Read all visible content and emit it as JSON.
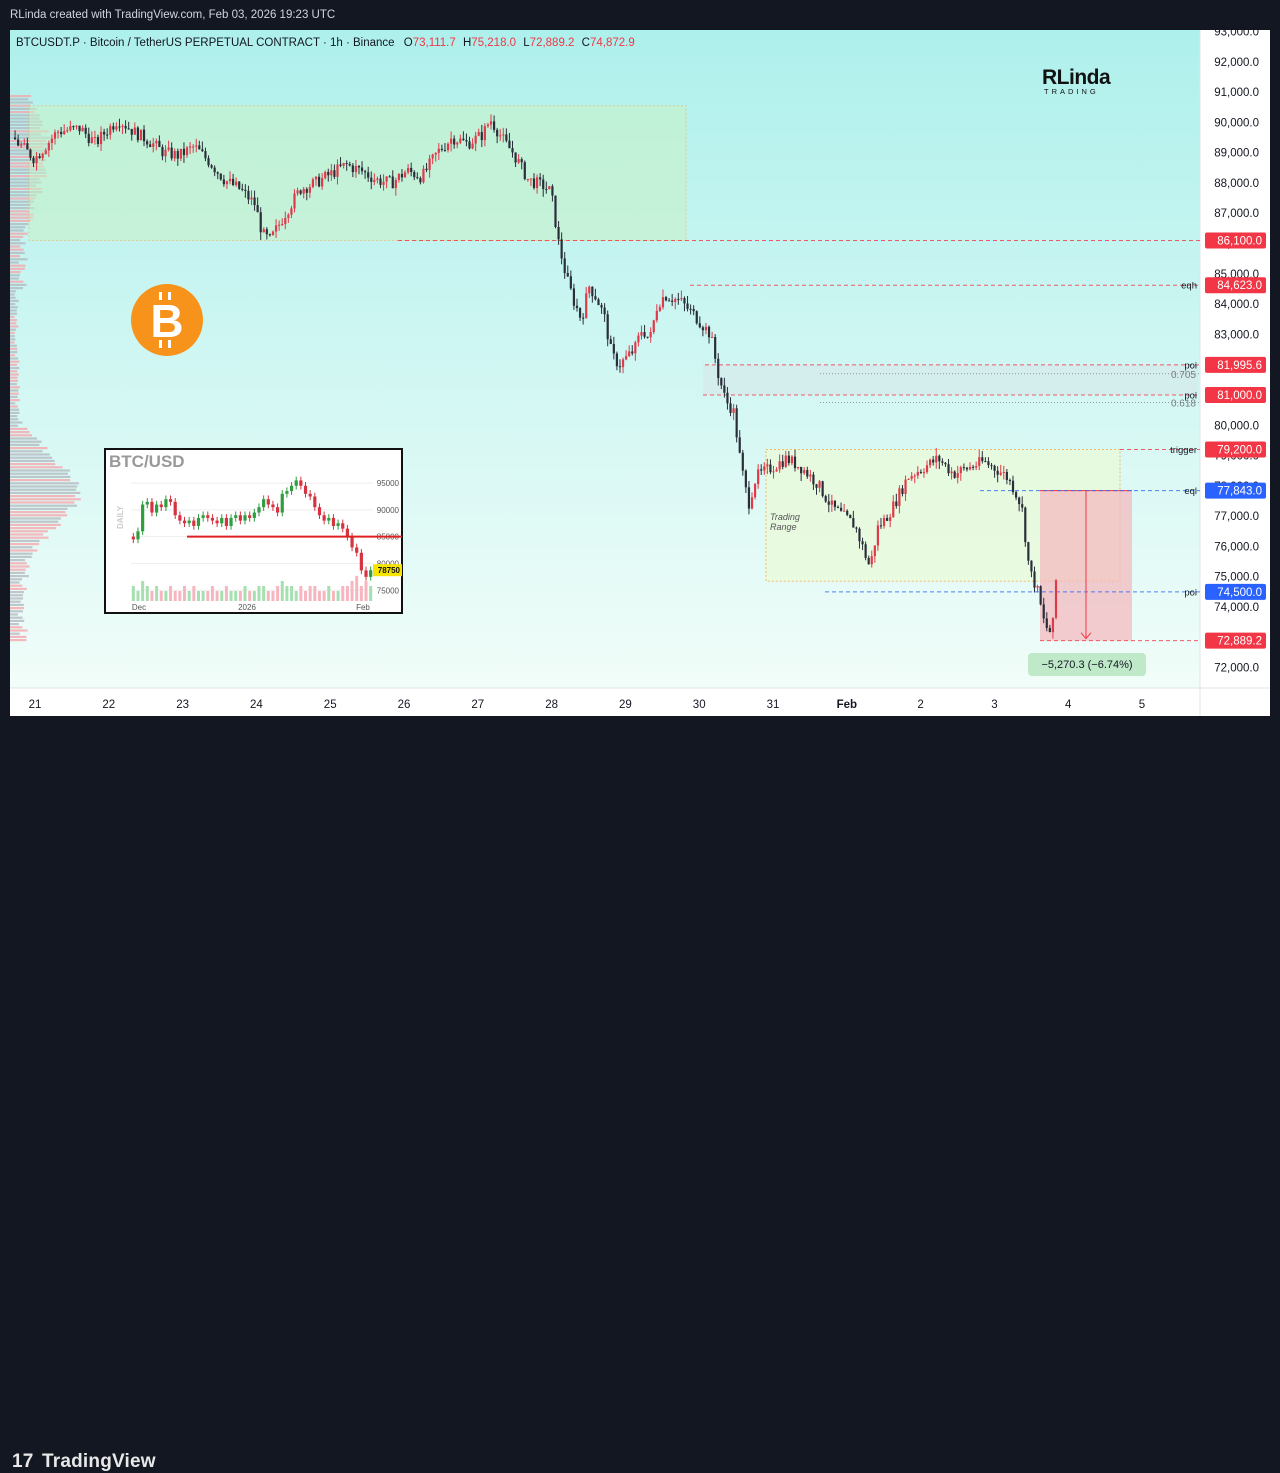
{
  "header": {
    "credit": "RLinda created with TradingView.com, Feb 03, 2026 19:23 UTC"
  },
  "footer": {
    "brand": "TradingView"
  },
  "watermark": {
    "line1": "RLinda",
    "line2": "TRADING"
  },
  "symbol": {
    "title": "BTCUSDT.P · Bitcoin / TetherUS PERPETUAL CONTRACT · 1h · Binance",
    "o_label": "O",
    "o_value": "73,111.7",
    "h_label": "H",
    "h_value": "75,218.0",
    "l_label": "L",
    "l_value": "72,889.2",
    "c_label": "C",
    "c_value": "74,872.9"
  },
  "colors": {
    "up": "#e0394a",
    "down": "#2a2e39",
    "bg_top": "#aef0ec",
    "bg_bottom": "#f1fdf9",
    "red_label": "#f23645",
    "blue_label": "#2962ff",
    "bitcoin": "#f7931a"
  },
  "chart_data": {
    "type": "candlestick",
    "timeframe": "1h",
    "x_ticks": [
      "21",
      "22",
      "23",
      "24",
      "25",
      "26",
      "27",
      "28",
      "29",
      "30",
      "31",
      "Feb",
      "2",
      "3",
      "4",
      "5"
    ],
    "y_ticks": [
      "72,000.0",
      "73,000.0",
      "74,000.0",
      "75,000.0",
      "76,000.0",
      "77,000.0",
      "78,000.0",
      "79,000.0",
      "80,000.0",
      "81,000.0",
      "82,000.0",
      "83,000.0",
      "84,000.0",
      "85,000.0",
      "86,000.0",
      "87,000.0",
      "88,000.0",
      "89,000.0",
      "90,000.0",
      "91,000.0",
      "92,000.0",
      "93,000.0"
    ],
    "ylim": [
      71300,
      93000
    ],
    "price_path": [
      [
        0,
        89500
      ],
      [
        3,
        88800
      ],
      [
        6,
        89700
      ],
      [
        9,
        89800
      ],
      [
        11,
        89300
      ],
      [
        12,
        89600
      ],
      [
        14,
        90100
      ],
      [
        16,
        89700
      ],
      [
        18,
        89400
      ],
      [
        20,
        89000
      ],
      [
        22,
        88900
      ],
      [
        24,
        89200
      ],
      [
        26,
        88700
      ],
      [
        28,
        88100
      ],
      [
        30,
        87800
      ],
      [
        32,
        87300
      ],
      [
        33,
        86300
      ],
      [
        34,
        86100
      ],
      [
        36,
        87000
      ],
      [
        38,
        87800
      ],
      [
        40,
        88000
      ],
      [
        42,
        88300
      ],
      [
        44,
        88600
      ],
      [
        46,
        88400
      ],
      [
        48,
        88100
      ],
      [
        50,
        88000
      ],
      [
        52,
        88400
      ],
      [
        54,
        88200
      ],
      [
        56,
        89000
      ],
      [
        58,
        89500
      ],
      [
        60,
        89300
      ],
      [
        62,
        89600
      ],
      [
        63,
        90100
      ],
      [
        64,
        89700
      ],
      [
        65,
        89300
      ],
      [
        66,
        89000
      ],
      [
        68,
        88100
      ],
      [
        70,
        87900
      ],
      [
        71,
        87700
      ],
      [
        72,
        86000
      ],
      [
        73,
        84900
      ],
      [
        74,
        84100
      ],
      [
        75,
        83500
      ],
      [
        76,
        84600
      ],
      [
        77,
        84200
      ],
      [
        78,
        83600
      ],
      [
        79,
        82300
      ],
      [
        80,
        82000
      ],
      [
        82,
        82500
      ],
      [
        83,
        83200
      ],
      [
        84,
        82800
      ],
      [
        85,
        84000
      ],
      [
        86,
        84300
      ],
      [
        88,
        84100
      ],
      [
        90,
        83600
      ],
      [
        91,
        83300
      ],
      [
        92,
        83000
      ],
      [
        93,
        81700
      ],
      [
        94,
        80800
      ],
      [
        95,
        80500
      ],
      [
        96,
        78700
      ],
      [
        97,
        77400
      ],
      [
        98,
        78300
      ],
      [
        100,
        78600
      ],
      [
        102,
        78900
      ],
      [
        104,
        78600
      ],
      [
        106,
        78100
      ],
      [
        108,
        77300
      ],
      [
        110,
        76900
      ],
      [
        111,
        76700
      ],
      [
        112,
        76000
      ],
      [
        113,
        75300
      ],
      [
        114,
        76600
      ],
      [
        115,
        76900
      ],
      [
        116,
        77300
      ],
      [
        118,
        78300
      ],
      [
        120,
        78600
      ],
      [
        122,
        78900
      ],
      [
        124,
        78400
      ],
      [
        126,
        78600
      ],
      [
        128,
        78800
      ],
      [
        130,
        78500
      ],
      [
        131,
        78300
      ],
      [
        132,
        77900
      ],
      [
        133,
        77300
      ],
      [
        134,
        75200
      ],
      [
        135,
        74600
      ],
      [
        136,
        73400
      ],
      [
        137,
        73100
      ],
      [
        137.5,
        74870
      ]
    ],
    "levels": [
      {
        "name": "86,100.0",
        "value": 86100,
        "color": "#f23645",
        "tag": ""
      },
      {
        "name": "84,623.0",
        "value": 84623,
        "color": "#f23645",
        "tag": "eqh"
      },
      {
        "name": "81,995.6",
        "value": 81995.6,
        "color": "#f23645",
        "tag": "poi"
      },
      {
        "name": "81,000.0",
        "value": 81000,
        "color": "#f23645",
        "tag": "poi"
      },
      {
        "name": "79,200.0",
        "value": 79200,
        "color": "#f23645",
        "tag": "trigger"
      },
      {
        "name": "77,843.0",
        "value": 77843,
        "color": "#2962ff",
        "tag": "eql"
      },
      {
        "name": "74,500.0",
        "value": 74500,
        "color": "#2962ff",
        "tag": "poi"
      },
      {
        "name": "72,889.2",
        "value": 72889.2,
        "color": "#f23645",
        "tag": ""
      }
    ],
    "fib": [
      {
        "label": "0.705",
        "value": 81700
      },
      {
        "label": "0.618",
        "value": 80750
      }
    ],
    "range_box_label": "Trading\nRange",
    "measure_label": "−5,270.3 (−6.74%)",
    "inset": {
      "title": "BTC/USD",
      "timeframe_label": "DAILY",
      "y_ticks": [
        "95000",
        "90000",
        "85000",
        "80000",
        "75000"
      ],
      "x_ticks": [
        "Dec",
        "2026",
        "Feb"
      ],
      "last_price": "78750",
      "level": 85000,
      "ylim": [
        73000,
        98000
      ],
      "closes": [
        84500,
        86000,
        91000,
        91500,
        89500,
        91000,
        90500,
        92000,
        91500,
        89000,
        88000,
        87500,
        88000,
        87000,
        88500,
        89000,
        88500,
        88000,
        87500,
        88500,
        87000,
        88500,
        89000,
        88000,
        89000,
        88500,
        89500,
        90500,
        92000,
        91000,
        90500,
        89500,
        93000,
        93500,
        94500,
        95500,
        94500,
        93000,
        92500,
        90500,
        89000,
        88000,
        88500,
        87000,
        87500,
        86500,
        85000,
        83000,
        82000,
        78700,
        77500,
        78750
      ],
      "volumes": [
        3,
        2,
        4,
        3,
        2,
        3,
        2,
        2,
        3,
        2,
        2,
        3,
        2,
        3,
        2,
        2,
        2,
        3,
        2,
        2,
        3,
        2,
        2,
        2,
        3,
        2,
        2,
        3,
        3,
        2,
        2,
        3,
        4,
        3,
        3,
        2,
        3,
        2,
        3,
        3,
        2,
        2,
        3,
        2,
        2,
        3,
        3,
        4,
        5,
        3,
        4,
        3
      ]
    }
  }
}
